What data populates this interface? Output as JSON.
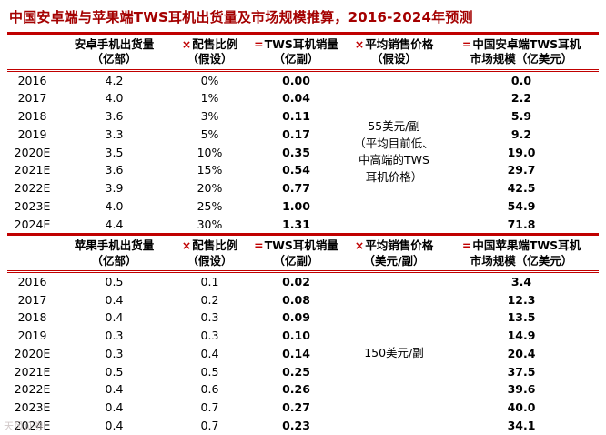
{
  "title": "中国安卓端与苹果端TWS耳机出货量及市场规模推算，2016-2024年预测",
  "watermark": "天风证券",
  "colors": {
    "accent": "#c00000",
    "title": "#a40000",
    "text": "#000000"
  },
  "chart_data": [
    {
      "type": "table",
      "name": "android",
      "headers": [
        "安卓手机出货量\n（亿部）",
        "配售比例\n（假设）",
        "TWS耳机销量\n（亿副）",
        "平均销售价格\n（假设）",
        "中国安卓端TWS耳机\n市场规模（亿美元）"
      ],
      "operators": [
        "×",
        "=",
        "×",
        "="
      ],
      "price_note": "55美元/副\n（平均目前低、\n中高端的TWS\n耳机价格）",
      "rows": [
        [
          "2016",
          "4.2",
          "0%",
          "0.00",
          "0.0"
        ],
        [
          "2017",
          "4.0",
          "1%",
          "0.04",
          "2.2"
        ],
        [
          "2018",
          "3.6",
          "3%",
          "0.11",
          "5.9"
        ],
        [
          "2019",
          "3.3",
          "5%",
          "0.17",
          "9.2"
        ],
        [
          "2020E",
          "3.5",
          "10%",
          "0.35",
          "19.0"
        ],
        [
          "2021E",
          "3.6",
          "15%",
          "0.54",
          "29.7"
        ],
        [
          "2022E",
          "3.9",
          "20%",
          "0.77",
          "42.5"
        ],
        [
          "2023E",
          "4.0",
          "25%",
          "1.00",
          "54.9"
        ],
        [
          "2024E",
          "4.4",
          "30%",
          "1.31",
          "71.8"
        ]
      ]
    },
    {
      "type": "table",
      "name": "apple",
      "headers": [
        "苹果手机出货量\n（亿部）",
        "配售比例\n（假设）",
        "TWS耳机销量\n（亿副）",
        "平均销售价格\n（美元/副）",
        "中国苹果端TWS耳机\n市场规模（亿美元）"
      ],
      "operators": [
        "×",
        "=",
        "×",
        "="
      ],
      "price_note": "150美元/副",
      "rows": [
        [
          "2016",
          "0.5",
          "0.1",
          "0.02",
          "3.4"
        ],
        [
          "2017",
          "0.4",
          "0.2",
          "0.08",
          "12.3"
        ],
        [
          "2018",
          "0.4",
          "0.3",
          "0.09",
          "13.5"
        ],
        [
          "2019",
          "0.3",
          "0.3",
          "0.10",
          "14.9"
        ],
        [
          "2020E",
          "0.3",
          "0.4",
          "0.14",
          "20.4"
        ],
        [
          "2021E",
          "0.5",
          "0.5",
          "0.25",
          "37.5"
        ],
        [
          "2022E",
          "0.4",
          "0.6",
          "0.26",
          "39.6"
        ],
        [
          "2023E",
          "0.4",
          "0.7",
          "0.27",
          "40.0"
        ],
        [
          "2024E",
          "0.4",
          "0.7",
          "0.23",
          "34.1"
        ]
      ]
    }
  ]
}
